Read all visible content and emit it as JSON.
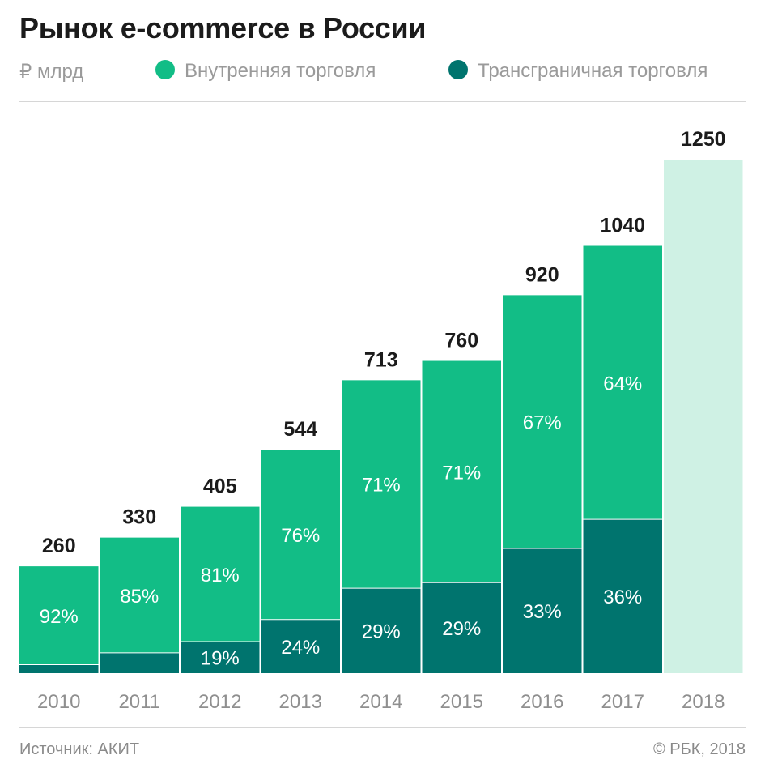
{
  "title": "Рынок e-commerce в России",
  "unit": "₽ млрд",
  "source": "Источник: АКИТ",
  "copyright": "© РБК, 2018",
  "colors": {
    "domestic": "#12bd86",
    "cross_border": "#00746e",
    "forecast": "#cff1e4",
    "total_label": "#1b1b1b",
    "axis_label": "#8f8f8f",
    "segment_label": "#ffffff"
  },
  "chart_data": {
    "type": "bar",
    "stacked": true,
    "categories": [
      "2010",
      "2011",
      "2012",
      "2013",
      "2014",
      "2015",
      "2016",
      "2017",
      "2018"
    ],
    "totals": [
      260,
      330,
      405,
      544,
      713,
      760,
      920,
      1040,
      1250
    ],
    "series": [
      {
        "name": "Внутренняя торговля",
        "share_pct": [
          92,
          85,
          81,
          76,
          71,
          71,
          67,
          64,
          null
        ],
        "labels": [
          "92%",
          "85%",
          "81%",
          "76%",
          "71%",
          "71%",
          "67%",
          "64%",
          ""
        ]
      },
      {
        "name": "Трансграничная торговля",
        "share_pct": [
          8,
          15,
          19,
          24,
          29,
          29,
          33,
          36,
          null
        ],
        "labels": [
          "",
          "",
          "19%",
          "24%",
          "29%",
          "29%",
          "33%",
          "36%",
          ""
        ]
      }
    ],
    "forecast_categories": [
      "2018"
    ],
    "ylim": [
      0,
      1250
    ],
    "grid": false,
    "legend_position": "top"
  }
}
